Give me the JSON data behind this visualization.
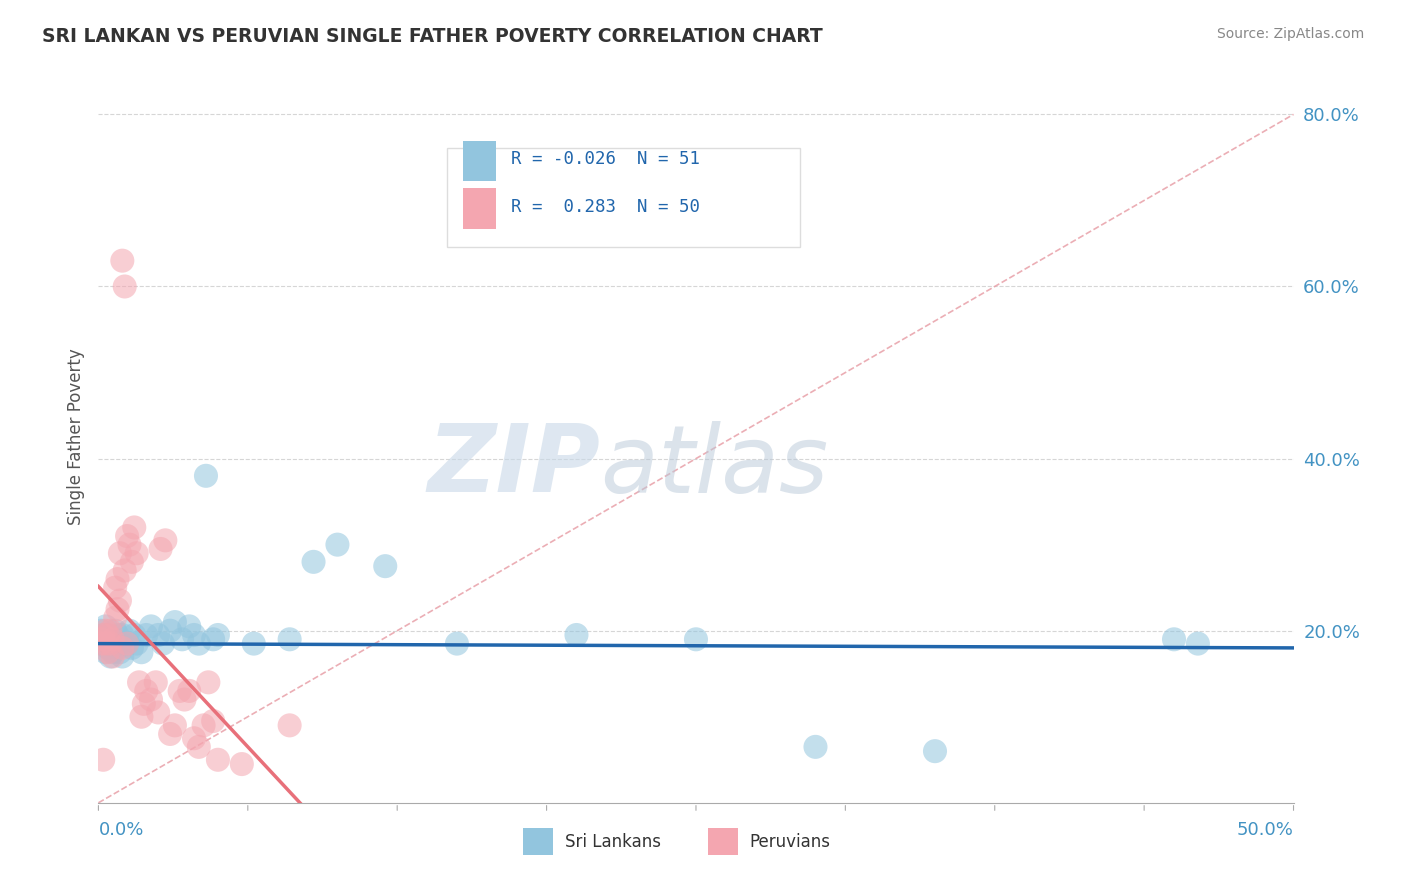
{
  "title": "SRI LANKAN VS PERUVIAN SINGLE FATHER POVERTY CORRELATION CHART",
  "source": "Source: ZipAtlas.com",
  "ylabel": "Single Father Poverty",
  "xlim": [
    0.0,
    0.5
  ],
  "ylim": [
    0.0,
    0.85
  ],
  "legend_R1": "-0.026",
  "legend_N1": "51",
  "legend_R2": "0.283",
  "legend_N2": "50",
  "color_sri": "#92C5DE",
  "color_peru": "#F4A6B0",
  "color_sri_line": "#2166AC",
  "color_peru_line": "#E8707A",
  "color_diag": "#E8A0A8",
  "sri_lankans": [
    [
      0.001,
      0.19
    ],
    [
      0.001,
      0.2
    ],
    [
      0.002,
      0.185
    ],
    [
      0.002,
      0.195
    ],
    [
      0.003,
      0.175
    ],
    [
      0.003,
      0.205
    ],
    [
      0.004,
      0.18
    ],
    [
      0.004,
      0.195
    ],
    [
      0.005,
      0.17
    ],
    [
      0.005,
      0.185
    ],
    [
      0.006,
      0.19
    ],
    [
      0.006,
      0.175
    ],
    [
      0.007,
      0.2
    ],
    [
      0.007,
      0.185
    ],
    [
      0.008,
      0.18
    ],
    [
      0.008,
      0.195
    ],
    [
      0.009,
      0.175
    ],
    [
      0.009,
      0.185
    ],
    [
      0.01,
      0.195
    ],
    [
      0.01,
      0.17
    ],
    [
      0.012,
      0.185
    ],
    [
      0.013,
      0.2
    ],
    [
      0.014,
      0.18
    ],
    [
      0.015,
      0.195
    ],
    [
      0.016,
      0.185
    ],
    [
      0.018,
      0.175
    ],
    [
      0.02,
      0.195
    ],
    [
      0.022,
      0.205
    ],
    [
      0.025,
      0.195
    ],
    [
      0.027,
      0.185
    ],
    [
      0.03,
      0.2
    ],
    [
      0.032,
      0.21
    ],
    [
      0.035,
      0.19
    ],
    [
      0.038,
      0.205
    ],
    [
      0.04,
      0.195
    ],
    [
      0.042,
      0.185
    ],
    [
      0.045,
      0.38
    ],
    [
      0.048,
      0.19
    ],
    [
      0.05,
      0.195
    ],
    [
      0.065,
      0.185
    ],
    [
      0.08,
      0.19
    ],
    [
      0.09,
      0.28
    ],
    [
      0.1,
      0.3
    ],
    [
      0.12,
      0.275
    ],
    [
      0.15,
      0.185
    ],
    [
      0.2,
      0.195
    ],
    [
      0.25,
      0.19
    ],
    [
      0.3,
      0.065
    ],
    [
      0.35,
      0.06
    ],
    [
      0.45,
      0.19
    ],
    [
      0.46,
      0.185
    ]
  ],
  "peruvians": [
    [
      0.001,
      0.19
    ],
    [
      0.001,
      0.185
    ],
    [
      0.002,
      0.195
    ],
    [
      0.002,
      0.05
    ],
    [
      0.003,
      0.2
    ],
    [
      0.003,
      0.185
    ],
    [
      0.004,
      0.195
    ],
    [
      0.004,
      0.175
    ],
    [
      0.005,
      0.185
    ],
    [
      0.005,
      0.2
    ],
    [
      0.006,
      0.19
    ],
    [
      0.006,
      0.17
    ],
    [
      0.007,
      0.25
    ],
    [
      0.007,
      0.215
    ],
    [
      0.008,
      0.26
    ],
    [
      0.008,
      0.225
    ],
    [
      0.009,
      0.29
    ],
    [
      0.009,
      0.235
    ],
    [
      0.01,
      0.63
    ],
    [
      0.01,
      0.18
    ],
    [
      0.011,
      0.6
    ],
    [
      0.011,
      0.27
    ],
    [
      0.012,
      0.31
    ],
    [
      0.012,
      0.185
    ],
    [
      0.013,
      0.3
    ],
    [
      0.014,
      0.28
    ],
    [
      0.015,
      0.32
    ],
    [
      0.016,
      0.29
    ],
    [
      0.017,
      0.14
    ],
    [
      0.018,
      0.1
    ],
    [
      0.019,
      0.115
    ],
    [
      0.02,
      0.13
    ],
    [
      0.022,
      0.12
    ],
    [
      0.024,
      0.14
    ],
    [
      0.025,
      0.105
    ],
    [
      0.026,
      0.295
    ],
    [
      0.028,
      0.305
    ],
    [
      0.03,
      0.08
    ],
    [
      0.032,
      0.09
    ],
    [
      0.034,
      0.13
    ],
    [
      0.036,
      0.12
    ],
    [
      0.038,
      0.13
    ],
    [
      0.04,
      0.075
    ],
    [
      0.042,
      0.065
    ],
    [
      0.044,
      0.09
    ],
    [
      0.046,
      0.14
    ],
    [
      0.048,
      0.095
    ],
    [
      0.05,
      0.05
    ],
    [
      0.06,
      0.045
    ],
    [
      0.08,
      0.09
    ]
  ]
}
